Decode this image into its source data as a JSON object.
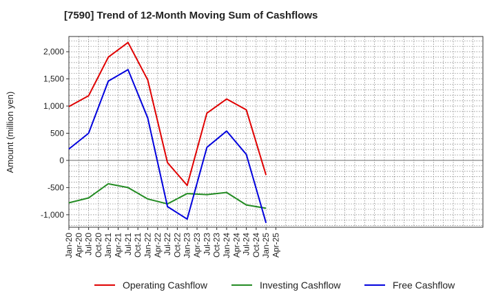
{
  "chart_data": {
    "type": "line",
    "title": "[7590]  Trend of 12-Month Moving Sum of Cashflows",
    "ylabel": "Amount (million yen)",
    "xlabel": "",
    "ylim": [
      -1230,
      2280
    ],
    "yticks": [
      2000,
      1500,
      1000,
      500,
      0,
      -500,
      -1000
    ],
    "ytick_labels": [
      "2,000",
      "1,500",
      "1,000",
      "500",
      "0",
      "-500",
      "-1,000"
    ],
    "xticks": [
      "Jan-20",
      "Apr-20",
      "Jul-20",
      "Oct-20",
      "Jan-21",
      "Apr-21",
      "Jul-21",
      "Oct-21",
      "Jan-22",
      "Apr-22",
      "Jul-22",
      "Oct-22",
      "Jan-23",
      "Apr-23",
      "Jul-23",
      "Oct-23",
      "Jan-24",
      "Apr-24",
      "Jul-24",
      "Oct-24",
      "Jan-25",
      "Apr-25"
    ],
    "x": [
      "Jan-20",
      "Jul-20",
      "Jan-21",
      "Jul-21",
      "Jan-22",
      "Jul-22",
      "Jan-23",
      "Jul-23",
      "Jan-24",
      "Jul-24",
      "Jan-25"
    ],
    "grid": true,
    "legend_position": "bottom",
    "series": [
      {
        "name": "Operating Cashflow",
        "color": "#e00000",
        "values": [
          990,
          1190,
          1900,
          2170,
          1480,
          -40,
          -460,
          870,
          1130,
          930,
          -270
        ]
      },
      {
        "name": "Investing Cashflow",
        "color": "#228b22",
        "values": [
          -780,
          -690,
          -430,
          -500,
          -710,
          -800,
          -610,
          -630,
          -590,
          -820,
          -880
        ]
      },
      {
        "name": "Free Cashflow",
        "color": "#0000dd",
        "values": [
          210,
          500,
          1460,
          1670,
          780,
          -850,
          -1080,
          240,
          540,
          110,
          -1150
        ]
      }
    ]
  }
}
